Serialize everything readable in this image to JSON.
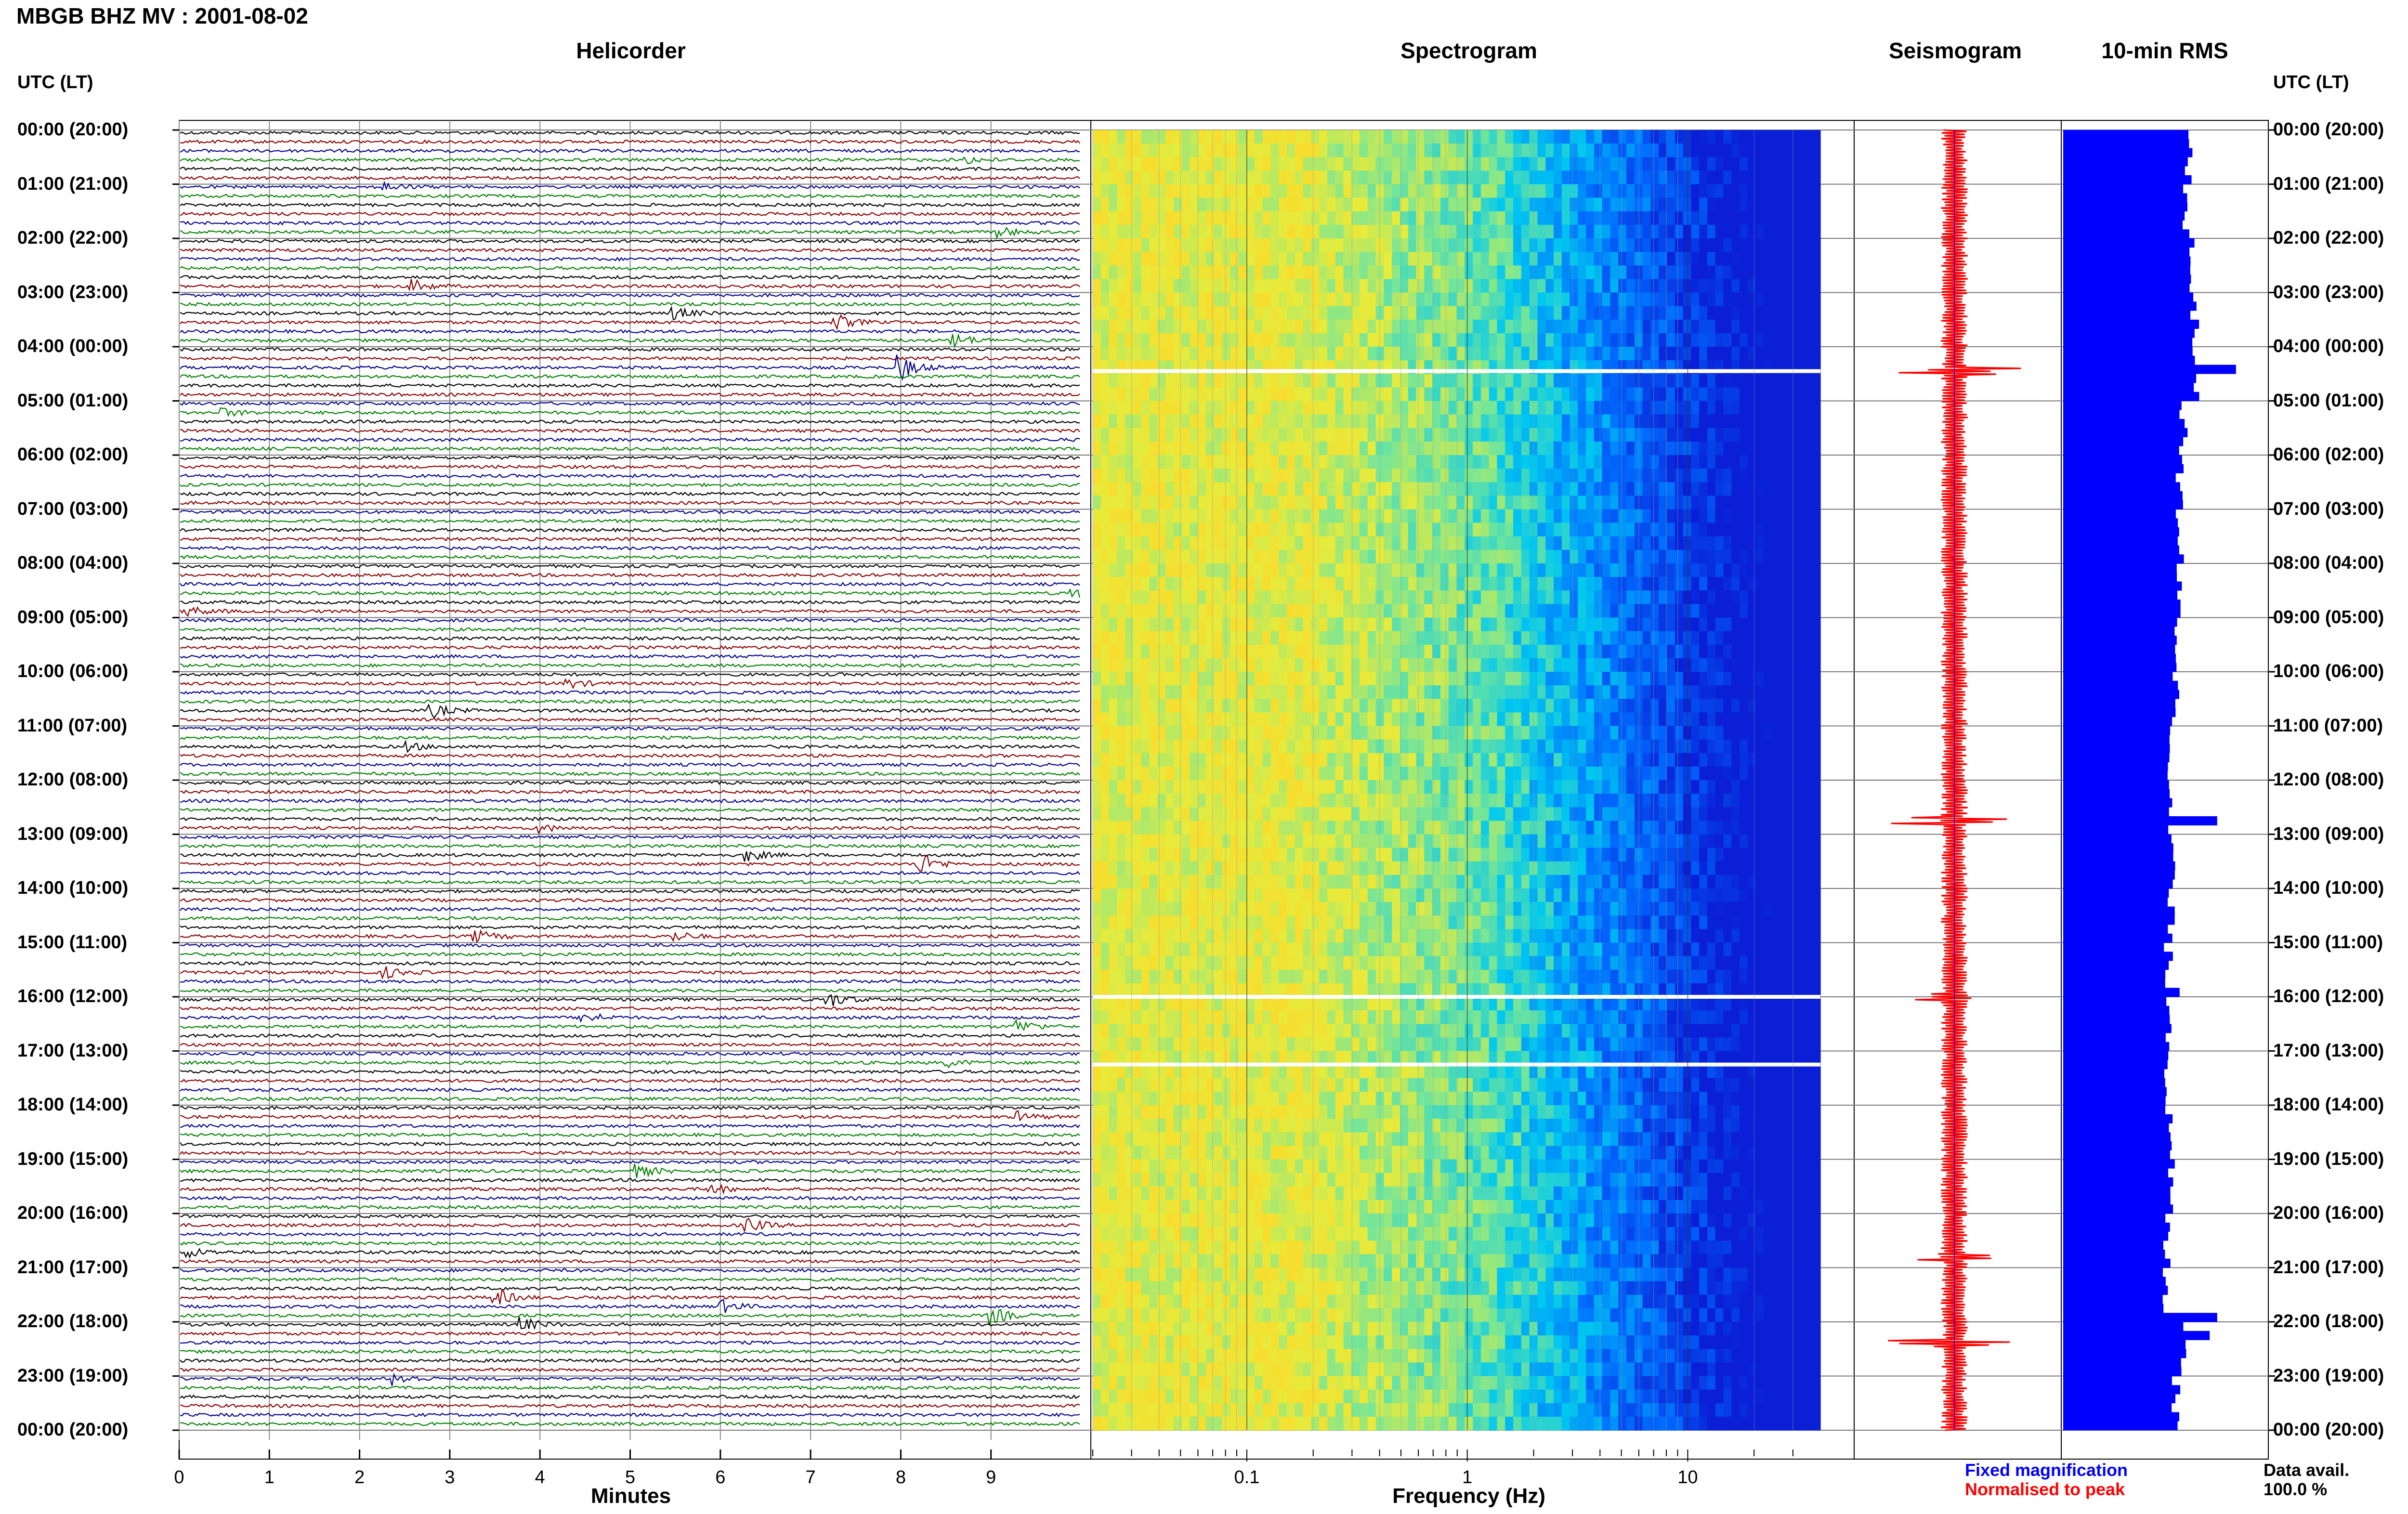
{
  "header": {
    "title": "MBGB BHZ MV : 2001-08-02"
  },
  "panels": {
    "helicorder": "Helicorder",
    "spectrogram": "Spectrogram",
    "seismogram": "Seismogram",
    "rms": "10-min RMS"
  },
  "axis_titles": {
    "left": "UTC (LT)",
    "right": "UTC (LT)",
    "minutes": "Minutes",
    "frequency": "Frequency (Hz)"
  },
  "legend": {
    "fixed": "Fixed magnification",
    "normalised": "Normalised to peak",
    "fixed_color": "#0000ff",
    "normalised_color": "#ff0000"
  },
  "data_avail": {
    "label": "Data avail.",
    "value": "100.0 %"
  },
  "colors": {
    "helicorder_traces": [
      "#000000",
      "#8b0000",
      "#00008b",
      "#008000"
    ],
    "rms_bars": "#0000ff",
    "seismogram": "#ff0000",
    "spectrogram_low": "#0a1fd6",
    "spectrogram_high": "#ffe600"
  },
  "chart_data": [
    {
      "type": "line",
      "title": "Helicorder",
      "xlabel": "Minutes",
      "ylabel": "UTC (LT)",
      "x_ticks": [
        "0",
        "1",
        "2",
        "3",
        "4",
        "5",
        "6",
        "7",
        "8",
        "9"
      ],
      "xlim": [
        0,
        10
      ],
      "y_ticks": [
        "00:00 (20:00)",
        "01:00 (21:00)",
        "02:00 (22:00)",
        "03:00 (23:00)",
        "04:00 (00:00)",
        "05:00 (01:00)",
        "06:00 (02:00)",
        "07:00 (03:00)",
        "08:00 (04:00)",
        "09:00 (05:00)",
        "10:00 (06:00)",
        "11:00 (07:00)",
        "12:00 (08:00)",
        "13:00 (09:00)",
        "14:00 (10:00)",
        "15:00 (11:00)",
        "16:00 (12:00)",
        "17:00 (13:00)",
        "18:00 (14:00)",
        "19:00 (15:00)",
        "20:00 (16:00)",
        "21:00 (17:00)",
        "22:00 (18:00)",
        "23:00 (19:00)",
        "00:00 (20:00)"
      ],
      "traces_per_hour": 6,
      "trace_count": 144,
      "grid": true,
      "events": [
        {
          "trace": 3,
          "minute": 8.7,
          "amp": 2.0
        },
        {
          "trace": 6,
          "minute": 2.3,
          "amp": 2.0
        },
        {
          "trace": 11,
          "minute": 9.1,
          "amp": 2.5
        },
        {
          "trace": 17,
          "minute": 2.6,
          "amp": 3.0
        },
        {
          "trace": 20,
          "minute": 5.5,
          "amp": 3.0
        },
        {
          "trace": 21,
          "minute": 7.3,
          "amp": 3.5
        },
        {
          "trace": 23,
          "minute": 8.6,
          "amp": 3.5
        },
        {
          "trace": 26,
          "minute": 8.0,
          "amp": 6.0
        },
        {
          "trace": 31,
          "minute": 0.5,
          "amp": 2.0
        },
        {
          "trace": 53,
          "minute": 0.1,
          "amp": 2.5
        },
        {
          "trace": 51,
          "minute": 9.9,
          "amp": 3.0
        },
        {
          "trace": 61,
          "minute": 4.3,
          "amp": 2.5
        },
        {
          "trace": 64,
          "minute": 2.8,
          "amp": 3.5
        },
        {
          "trace": 68,
          "minute": 2.5,
          "amp": 2.5
        },
        {
          "trace": 77,
          "minute": 4.0,
          "amp": 2.0
        },
        {
          "trace": 80,
          "minute": 6.3,
          "amp": 3.0
        },
        {
          "trace": 81,
          "minute": 8.2,
          "amp": 6.0
        },
        {
          "trace": 89,
          "minute": 3.3,
          "amp": 3.0
        },
        {
          "trace": 89,
          "minute": 5.5,
          "amp": 2.5
        },
        {
          "trace": 93,
          "minute": 2.3,
          "amp": 2.5
        },
        {
          "trace": 96,
          "minute": 7.2,
          "amp": 4.0
        },
        {
          "trace": 98,
          "minute": 4.5,
          "amp": 3.0
        },
        {
          "trace": 99,
          "minute": 9.3,
          "amp": 3.5
        },
        {
          "trace": 103,
          "minute": 8.5,
          "amp": 2.0
        },
        {
          "trace": 109,
          "minute": 9.3,
          "amp": 2.5
        },
        {
          "trace": 115,
          "minute": 5.1,
          "amp": 3.0
        },
        {
          "trace": 117,
          "minute": 5.9,
          "amp": 2.5
        },
        {
          "trace": 121,
          "minute": 6.3,
          "amp": 3.5
        },
        {
          "trace": 124,
          "minute": 0.1,
          "amp": 2.5
        },
        {
          "trace": 129,
          "minute": 3.5,
          "amp": 4.5
        },
        {
          "trace": 130,
          "minute": 6.0,
          "amp": 3.5
        },
        {
          "trace": 131,
          "minute": 9.0,
          "amp": 4.5
        },
        {
          "trace": 132,
          "minute": 3.8,
          "amp": 3.5
        },
        {
          "trace": 138,
          "minute": 2.4,
          "amp": 3.0
        }
      ]
    },
    {
      "type": "heatmap",
      "title": "Spectrogram",
      "xlabel": "Frequency (Hz)",
      "x_scale": "log",
      "xlim": [
        0.02,
        40
      ],
      "x_ticks": [
        "0.1",
        "1",
        "10"
      ],
      "y_range_hours": [
        0,
        24
      ],
      "data_gaps_hours": [
        4.45,
        16.0,
        17.25
      ]
    },
    {
      "type": "line",
      "title": "Seismogram",
      "series": [
        {
          "name": "Fixed magnification"
        },
        {
          "name": "Normalised to peak"
        }
      ],
      "spikes": [
        {
          "hour": 4.45,
          "amp": 0.8
        },
        {
          "hour": 12.75,
          "amp": 0.9
        },
        {
          "hour": 16.0,
          "amp": 0.5
        },
        {
          "hour": 20.8,
          "amp": 0.4
        },
        {
          "hour": 22.4,
          "amp": 1.0
        }
      ]
    },
    {
      "type": "bar",
      "title": "10-min RMS",
      "hourly_rms": [
        0.67,
        0.66,
        0.68,
        0.7,
        0.7,
        0.64,
        0.62,
        0.62,
        0.61,
        0.61,
        0.6,
        0.58,
        0.56,
        0.58,
        0.57,
        0.56,
        0.57,
        0.56,
        0.56,
        0.57,
        0.55,
        0.55,
        0.65,
        0.6
      ],
      "spikes": [
        {
          "hour": 4.3,
          "value": 0.92
        },
        {
          "hour": 12.7,
          "value": 0.82
        },
        {
          "hour": 15.8,
          "value": 0.62
        },
        {
          "hour": 21.9,
          "value": 0.82
        },
        {
          "hour": 22.1,
          "value": 0.78
        }
      ]
    }
  ]
}
